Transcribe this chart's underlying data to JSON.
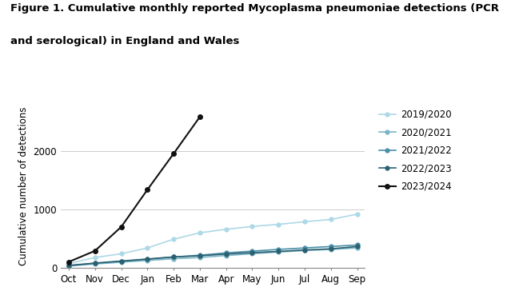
{
  "title_line1": "Figure 1. Cumulative monthly reported Mycoplasma pneumoniae detections (PCR",
  "title_line2": "and serological) in England and Wales",
  "ylabel": "Cumulative number of detections",
  "months": [
    "Oct",
    "Nov",
    "Dec",
    "Jan",
    "Feb",
    "Mar",
    "Apr",
    "May",
    "Jun",
    "Jul",
    "Aug",
    "Sep"
  ],
  "series": {
    "2019/2020": {
      "values": [
        70,
        175,
        240,
        340,
        490,
        600,
        660,
        710,
        745,
        790,
        830,
        920
      ],
      "color": "#add8e6",
      "marker": "o",
      "linewidth": 1.2,
      "markersize": 3.5
    },
    "2020/2021": {
      "values": [
        30,
        65,
        95,
        125,
        155,
        175,
        210,
        240,
        270,
        295,
        315,
        340
      ],
      "color": "#7ab5c8",
      "marker": "o",
      "linewidth": 1.2,
      "markersize": 3.5
    },
    "2021/2022": {
      "values": [
        35,
        75,
        110,
        145,
        185,
        215,
        255,
        285,
        315,
        340,
        365,
        390
      ],
      "color": "#4a8fa8",
      "marker": "o",
      "linewidth": 1.2,
      "markersize": 3.5
    },
    "2022/2023": {
      "values": [
        40,
        80,
        115,
        150,
        185,
        205,
        235,
        260,
        280,
        305,
        325,
        364
      ],
      "color": "#2b6070",
      "marker": "o",
      "linewidth": 1.2,
      "markersize": 3.5
    },
    "2023/2024": {
      "values": [
        100,
        290,
        700,
        1340,
        1960,
        2592,
        null,
        null,
        null,
        null,
        null,
        null
      ],
      "color": "#111111",
      "marker": "o",
      "linewidth": 1.5,
      "markersize": 4
    }
  },
  "ylim": [
    0,
    2800
  ],
  "yticks": [
    0,
    1000,
    2000
  ],
  "background_color": "#ffffff",
  "grid_color": "#cccccc",
  "title_fontsize": 9.5,
  "axis_fontsize": 8.5,
  "legend_fontsize": 8.5,
  "tick_fontsize": 8.5
}
